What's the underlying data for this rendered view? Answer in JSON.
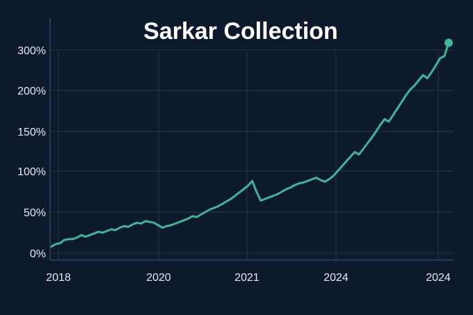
{
  "chart_data": {
    "type": "line",
    "title": "Sarkar Collection",
    "xlabel": "",
    "ylabel": "",
    "x_tick_labels": [
      "2018",
      "2020",
      "2021",
      "2024",
      "2024"
    ],
    "y_tick_labels": [
      "0%",
      "50%",
      "100%",
      "150%",
      "200%",
      "300%"
    ],
    "y_tick_values": [
      0,
      50,
      100,
      150,
      200,
      300
    ],
    "grid": true,
    "line_color": "#3fb69a",
    "end_marker": true,
    "series": [
      {
        "values": [
          8,
          11,
          12,
          16,
          17,
          17,
          19,
          22,
          20,
          22,
          24,
          26,
          25,
          27,
          29,
          28,
          31,
          33,
          32,
          35,
          37,
          36,
          39,
          38,
          37,
          34,
          31,
          33,
          34,
          36,
          38,
          40,
          42,
          45,
          44,
          47,
          50,
          53,
          55,
          57,
          60,
          63,
          66,
          70,
          74,
          78,
          82,
          88,
          75,
          64,
          66,
          68,
          70,
          72,
          75,
          78,
          80,
          83,
          85,
          86,
          88,
          90,
          92,
          89,
          87,
          90,
          94,
          100,
          106,
          112,
          118,
          124,
          121,
          128,
          135,
          142,
          150,
          158,
          165,
          162,
          170,
          178,
          186,
          194,
          202,
          212,
          225,
          238,
          230,
          245,
          262,
          280,
          285,
          318
        ]
      }
    ]
  }
}
